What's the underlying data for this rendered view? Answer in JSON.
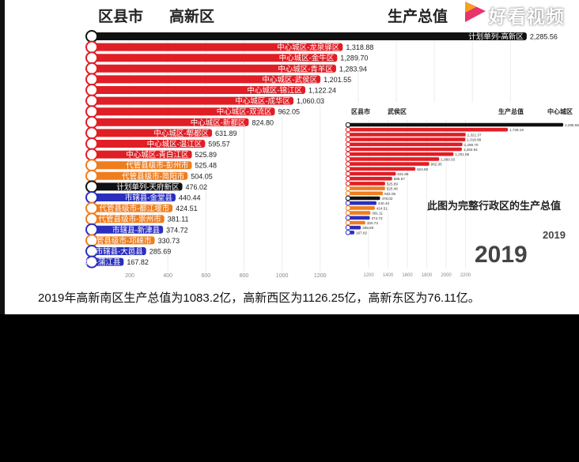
{
  "header": {
    "col_left": "区县市",
    "col_region": "高新区",
    "col_right": "生产总值"
  },
  "logo": {
    "text": "好看视频",
    "accent": "#e8336b"
  },
  "chart_data": [
    {
      "type": "bar",
      "orientation": "horizontal",
      "categories": [
        "计划单列-高新区",
        "中心城区-龙泉驿区",
        "中心城区-金牛区",
        "中心城区-青羊区",
        "中心城区-武侯区",
        "中心城区-锦江区",
        "中心城区-成华区",
        "中心城区-双流区",
        "中心城区-新都区",
        "中心城区-郫都区",
        "中心城区-温江区",
        "中心城区-青白江区",
        "代管县级市-彭州市",
        "代管县级市-简阳市",
        "计划单列-天府新区",
        "市辖县-金堂县",
        "代管县级市-都江堰市",
        "代管县级市-崇州市",
        "市辖县-新津县",
        "代管县级市-邛崃市",
        "市辖县-大邑县",
        "市辖县-蒲江县"
      ],
      "values": [
        2285.56,
        1318.88,
        1289.7,
        1283.94,
        1201.55,
        1122.24,
        1060.03,
        962.05,
        824.8,
        631.89,
        595.57,
        525.89,
        525.48,
        504.05,
        476.02,
        440.44,
        424.51,
        381.11,
        374.72,
        330.73,
        285.69,
        167.82
      ],
      "value_labels": [
        "2,285.56",
        "1,318.88",
        "1,289.70",
        "1,283.94",
        "1,201.55",
        "1,122.24",
        "1,060.03",
        "962.05",
        "824.80",
        "631.89",
        "595.57",
        "525.89",
        "525.48",
        "504.05",
        "476.02",
        "440.44",
        "424.51",
        "381.11",
        "374.72",
        "330.73",
        "285.69",
        "167.82"
      ],
      "groups": [
        "计划单列",
        "中心城区",
        "中心城区",
        "中心城区",
        "中心城区",
        "中心城区",
        "中心城区",
        "中心城区",
        "中心城区",
        "中心城区",
        "中心城区",
        "中心城区",
        "代管县级市",
        "代管县级市",
        "计划单列",
        "市辖县",
        "代管县级市",
        "代管县级市",
        "市辖县",
        "代管县级市",
        "市辖县",
        "市辖县"
      ],
      "group_colors": {
        "计划单列": "#111111",
        "中心城区": "#e01e25",
        "代管县级市": "#ef7d1e",
        "市辖县": "#2b2fc0"
      },
      "xticks": [
        "200",
        "400",
        "600",
        "800",
        "1000",
        "1200",
        "1400",
        "1600",
        "1800",
        "2000",
        "2200"
      ],
      "xlim": [
        0,
        2300
      ],
      "year": "2019"
    },
    {
      "type": "bar",
      "orientation": "horizontal",
      "header_left": "区县市",
      "header_region": "武侯区",
      "header_value": "生产总值",
      "header_extra": "中心城区",
      "values": [
        2285.56,
        1738.19,
        1321.37,
        1318.88,
        1289.7,
        1283.94,
        1201.55,
        1060.03,
        962.05,
        824.8,
        631.89,
        595.57,
        525.89,
        525.48,
        504.05,
        476.02,
        440.44,
        424.51,
        381.11,
        374.72,
        330.73,
        285.69,
        167.82
      ],
      "value_labels": [
        "2,285.56",
        "1,738.19",
        "1,321.37",
        "1,318.88",
        "1,289.70",
        "1,283.94",
        "1,201.55",
        "1,060.03",
        "962.05",
        "824.80",
        "631.89",
        "595.57",
        "525.89",
        "525.48",
        "504.05",
        "476.02",
        "440.44",
        "424.51",
        "381.11",
        "374.72",
        "330.73",
        "285.69",
        "167.82"
      ],
      "xticks": [
        "1200",
        "1400",
        "1600",
        "1800",
        "2000",
        "2200"
      ],
      "xlim": [
        1200,
        2350
      ],
      "note": "此图为完整行政区的生产总值",
      "year": "2019"
    }
  ],
  "caption": "2019年高新南区生产总值为1083.2亿，高新西区为1126.25亿，高新东区为76.11亿。"
}
